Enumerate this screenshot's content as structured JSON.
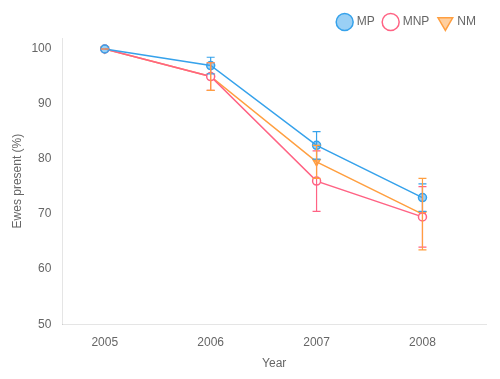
{
  "chart_data": {
    "type": "line",
    "x": [
      2005,
      2006,
      2007,
      2008
    ],
    "series": [
      {
        "name": "MP",
        "values": [
          100,
          97.0,
          82.5,
          73.0
        ],
        "errors": [
          0.0,
          1.5,
          2.5,
          2.5
        ],
        "marker": "circle",
        "line_style": "solid"
      },
      {
        "name": "MNP",
        "values": [
          100,
          95.0,
          76.0,
          69.5
        ],
        "errors": [
          0.0,
          2.5,
          5.5,
          5.5
        ],
        "marker": "circle_open",
        "line_style": "solid"
      },
      {
        "name": "NM",
        "values": [
          100,
          95.0,
          79.5,
          70.0
        ],
        "errors": [
          0.0,
          2.5,
          3.0,
          6.5
        ],
        "marker": "triangle_down",
        "line_style": "solid"
      }
    ],
    "x_label": "Year",
    "y_label": "Ewes present (%)",
    "xlim": [
      2004.6,
      2008.6
    ],
    "xticks": [
      2005,
      2006,
      2007,
      2008
    ],
    "ylim": [
      50,
      102
    ],
    "yticks": [
      50,
      60,
      70,
      80,
      90,
      100
    ],
    "grid": false,
    "legend": "upper right"
  }
}
